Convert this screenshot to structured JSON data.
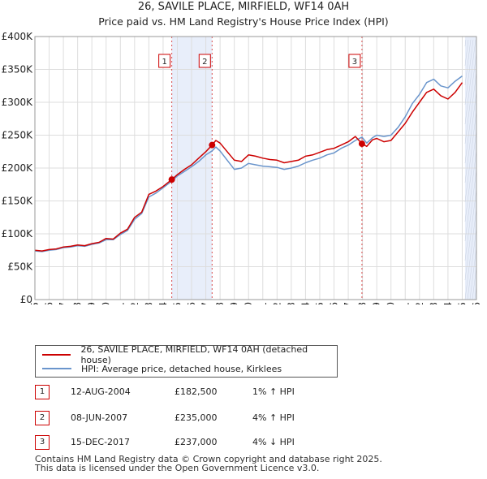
{
  "title": "26, SAVILE PLACE, MIRFIELD, WF14 0AH",
  "subtitle": "Price paid vs. HM Land Registry's House Price Index (HPI)",
  "colors": {
    "property": "#cc0000",
    "hpi": "#6a95cc",
    "shade": "#e8eefa",
    "grid": "#dddddd",
    "marker_border": "#cc0000"
  },
  "legend": {
    "property_label": "26, SAVILE PLACE, MIRFIELD, WF14 0AH (detached house)",
    "hpi_label": "HPI: Average price, detached house, Kirklees"
  },
  "transactions": [
    {
      "num": "1",
      "date": "12-AUG-2004",
      "price": "£182,500",
      "hpi": "1% ↑ HPI"
    },
    {
      "num": "2",
      "date": "08-JUN-2007",
      "price": "£235,000",
      "hpi": "4% ↑ HPI"
    },
    {
      "num": "3",
      "date": "15-DEC-2017",
      "price": "£237,000",
      "hpi": "4% ↓ HPI"
    }
  ],
  "footer": {
    "line1": "Contains HM Land Registry data © Crown copyright and database right 2025.",
    "line2": "This data is licensed under the Open Government Licence v3.0."
  },
  "chart_data": {
    "type": "line",
    "title": "26, SAVILE PLACE, MIRFIELD, WF14 0AH",
    "subtitle": "Price paid vs. HM Land Registry's House Price Index (HPI)",
    "xlabel": "",
    "ylabel": "",
    "xlim": [
      1995,
      2026
    ],
    "ylim": [
      0,
      400000
    ],
    "x_ticks": [
      1995,
      1996,
      1997,
      1998,
      1999,
      2000,
      2001,
      2002,
      2003,
      2004,
      2005,
      2006,
      2007,
      2008,
      2009,
      2010,
      2011,
      2012,
      2013,
      2014,
      2015,
      2016,
      2017,
      2018,
      2019,
      2020,
      2021,
      2022,
      2023,
      2024,
      2025,
      2026
    ],
    "y_ticks": [
      {
        "value": 0,
        "label": "£0"
      },
      {
        "value": 50000,
        "label": "£50K"
      },
      {
        "value": 100000,
        "label": "£100K"
      },
      {
        "value": 150000,
        "label": "£150K"
      },
      {
        "value": 200000,
        "label": "£200K"
      },
      {
        "value": 250000,
        "label": "£250K"
      },
      {
        "value": 300000,
        "label": "£300K"
      },
      {
        "value": 350000,
        "label": "£350K"
      },
      {
        "value": 400000,
        "label": "£400K"
      }
    ],
    "grid": true,
    "shaded_regions": [
      [
        2004.61,
        2007.44
      ],
      [
        2025.2,
        2026
      ]
    ],
    "series": [
      {
        "name": "26, SAVILE PLACE, MIRFIELD, WF14 0AH (detached house)",
        "x": [
          1995,
          1995.5,
          1996,
          1996.5,
          1997,
          1997.5,
          1998,
          1998.5,
          1999,
          1999.5,
          2000,
          2000.5,
          2001,
          2001.5,
          2002,
          2002.5,
          2003,
          2003.5,
          2004,
          2004.61,
          2005,
          2005.5,
          2006,
          2006.5,
          2007,
          2007.44,
          2007.7,
          2008,
          2008.5,
          2009,
          2009.5,
          2010,
          2010.5,
          2011,
          2011.5,
          2012,
          2012.5,
          2013,
          2013.5,
          2014,
          2014.5,
          2015,
          2015.5,
          2016,
          2016.5,
          2017,
          2017.5,
          2017.96,
          2018.3,
          2018.7,
          2019,
          2019.5,
          2020,
          2020.5,
          2021,
          2021.5,
          2022,
          2022.5,
          2023,
          2023.5,
          2024,
          2024.5,
          2025
        ],
        "values": [
          75000,
          74000,
          76000,
          77000,
          80000,
          81000,
          83000,
          82000,
          85000,
          87000,
          93000,
          92000,
          101000,
          107000,
          125000,
          133000,
          160000,
          165000,
          172000,
          182500,
          190000,
          198000,
          205000,
          215000,
          225000,
          235000,
          242000,
          238000,
          225000,
          212000,
          210000,
          220000,
          218000,
          215000,
          213000,
          212000,
          208000,
          210000,
          212000,
          218000,
          220000,
          224000,
          228000,
          230000,
          235000,
          240000,
          248000,
          237000,
          233000,
          243000,
          245000,
          240000,
          242000,
          255000,
          268000,
          285000,
          300000,
          315000,
          320000,
          310000,
          305000,
          315000,
          330000
        ]
      },
      {
        "name": "HPI: Average price, detached house, Kirklees",
        "x": [
          1995,
          1995.5,
          1996,
          1996.5,
          1997,
          1997.5,
          1998,
          1998.5,
          1999,
          1999.5,
          2000,
          2000.5,
          2001,
          2001.5,
          2002,
          2002.5,
          2003,
          2003.5,
          2004,
          2004.61,
          2005,
          2005.5,
          2006,
          2006.5,
          2007,
          2007.44,
          2007.7,
          2008,
          2008.5,
          2009,
          2009.5,
          2010,
          2010.5,
          2011,
          2011.5,
          2012,
          2012.5,
          2013,
          2013.5,
          2014,
          2014.5,
          2015,
          2015.5,
          2016,
          2016.5,
          2017,
          2017.5,
          2017.96,
          2018.3,
          2018.7,
          2019,
          2019.5,
          2020,
          2020.5,
          2021,
          2021.5,
          2022,
          2022.5,
          2023,
          2023.5,
          2024,
          2024.5,
          2025
        ],
        "values": [
          74000,
          73000,
          75000,
          76000,
          79000,
          80000,
          82000,
          81000,
          84000,
          86000,
          91000,
          91000,
          99000,
          105000,
          122000,
          131000,
          156000,
          162000,
          170000,
          180000,
          188000,
          195000,
          202000,
          210000,
          220000,
          226000,
          232000,
          226000,
          212000,
          198000,
          200000,
          207000,
          205000,
          203000,
          202000,
          201000,
          198000,
          200000,
          203000,
          208000,
          212000,
          215000,
          220000,
          223000,
          230000,
          235000,
          242000,
          247000,
          238000,
          246000,
          250000,
          248000,
          250000,
          262000,
          278000,
          298000,
          312000,
          330000,
          335000,
          325000,
          322000,
          332000,
          340000
        ]
      }
    ],
    "sales": [
      {
        "label": "1",
        "x": 2004.61,
        "value": 182500
      },
      {
        "label": "2",
        "x": 2007.44,
        "value": 235000
      },
      {
        "label": "3",
        "x": 2017.96,
        "value": 237000
      }
    ]
  }
}
